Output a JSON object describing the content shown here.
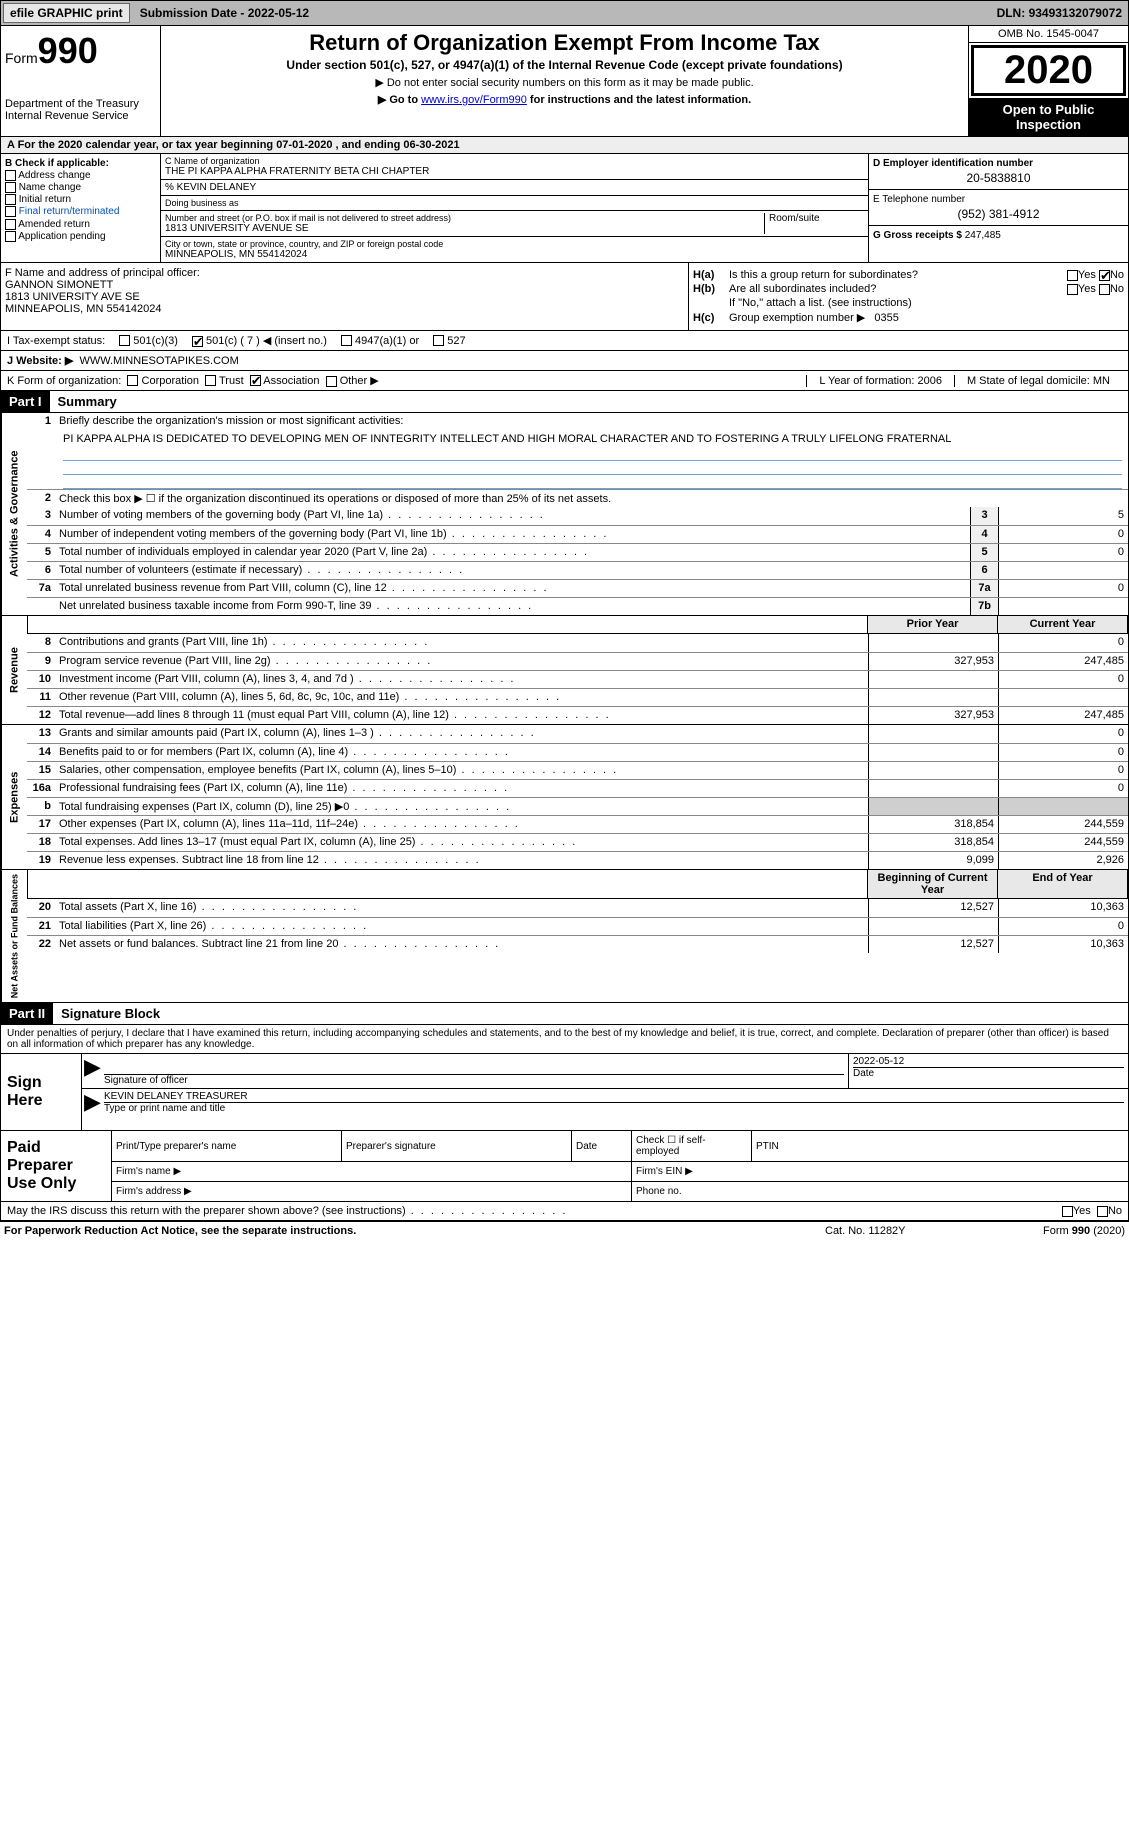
{
  "topbar": {
    "efile": "efile GRAPHIC print",
    "submission_label": "Submission Date - ",
    "submission_date": "2022-05-12",
    "dln_label": "DLN: ",
    "dln": "93493132079072"
  },
  "header": {
    "form_prefix": "Form",
    "form_number": "990",
    "dept": "Department of the Treasury\nInternal Revenue Service",
    "title": "Return of Organization Exempt From Income Tax",
    "subtitle": "Under section 501(c), 527, or 4947(a)(1) of the Internal Revenue Code (except private foundations)",
    "note1": "▶ Do not enter social security numbers on this form as it may be made public.",
    "note2_pre": "▶ Go to ",
    "note2_link": "www.irs.gov/Form990",
    "note2_post": " for instructions and the latest information.",
    "omb": "OMB No. 1545-0047",
    "year": "2020",
    "inspect": "Open to Public Inspection"
  },
  "periodline": "A For the 2020 calendar year, or tax year beginning 07-01-2020    , and ending 06-30-2021",
  "sectionB": {
    "title": "B Check if applicable:",
    "items": [
      "Address change",
      "Name change",
      "Initial return",
      "Final return/terminated",
      "Amended return",
      "Application pending"
    ]
  },
  "sectionC": {
    "label_name": "C Name of organization",
    "org_name": "THE PI KAPPA ALPHA FRATERNITY BETA CHI CHAPTER",
    "care_of": "% KEVIN DELANEY",
    "dba_label": "Doing business as",
    "street_label": "Number and street (or P.O. box if mail is not delivered to street address)",
    "room_label": "Room/suite",
    "street": "1813 UNIVERSITY AVENUE SE",
    "city_label": "City or town, state or province, country, and ZIP or foreign postal code",
    "city": "MINNEAPOLIS, MN  554142024"
  },
  "sectionD": {
    "label": "D Employer identification number",
    "value": "20-5838810"
  },
  "sectionE": {
    "label": "E Telephone number",
    "value": "(952) 381-4912"
  },
  "sectionG": {
    "label": "G Gross receipts $ ",
    "value": "247,485"
  },
  "sectionF": {
    "label": "F Name and address of principal officer:",
    "name": "GANNON SIMONETT",
    "addr1": "1813 UNIVERSITY AVE SE",
    "addr2": "MINNEAPOLIS, MN  554142024"
  },
  "sectionH": {
    "a": "Is this a group return for subordinates?",
    "a_yes": "Yes",
    "a_no": "No",
    "b": "Are all subordinates included?",
    "b_note": "If \"No,\" attach a list. (see instructions)",
    "c_label": "Group exemption number ▶",
    "c_value": "0355"
  },
  "rowI": {
    "label": "I    Tax-exempt status:",
    "opts": [
      "501(c)(3)",
      "501(c) ( 7 ) ◀ (insert no.)",
      "4947(a)(1) or",
      "527"
    ]
  },
  "rowJ": {
    "label": "J   Website: ▶",
    "value": "WWW.MINNESOTAPIKES.COM"
  },
  "rowK": {
    "label": "K Form of organization:",
    "opts": [
      "Corporation",
      "Trust",
      "Association",
      "Other ▶"
    ],
    "L": "L Year of formation: 2006",
    "M": "M State of legal domicile: MN"
  },
  "partI": {
    "num": "Part I",
    "title": "Summary"
  },
  "summary": {
    "side_gov": "Activities & Governance",
    "side_rev": "Revenue",
    "side_exp": "Expenses",
    "side_net": "Net Assets or Fund Balances",
    "l1_label": "Briefly describe the organization's mission or most significant activities:",
    "l1_text": "PI KAPPA ALPHA IS DEDICATED TO DEVELOPING MEN OF INNTEGRITY INTELLECT AND HIGH MORAL CHARACTER AND TO FOSTERING A TRULY LIFELONG FRATERNAL",
    "l2": "Check this box ▶ ☐  if the organization discontinued its operations or disposed of more than 25% of its net assets.",
    "lines_gov": [
      {
        "n": "3",
        "d": "Number of voting members of the governing body (Part VI, line 1a)",
        "box": "3",
        "v": "5"
      },
      {
        "n": "4",
        "d": "Number of independent voting members of the governing body (Part VI, line 1b)",
        "box": "4",
        "v": "0"
      },
      {
        "n": "5",
        "d": "Total number of individuals employed in calendar year 2020 (Part V, line 2a)",
        "box": "5",
        "v": "0"
      },
      {
        "n": "6",
        "d": "Total number of volunteers (estimate if necessary)",
        "box": "6",
        "v": ""
      },
      {
        "n": "7a",
        "d": "Total unrelated business revenue from Part VIII, column (C), line 12",
        "box": "7a",
        "v": "0"
      },
      {
        "n": "",
        "d": "Net unrelated business taxable income from Form 990-T, line 39",
        "box": "7b",
        "v": ""
      }
    ],
    "col_prior": "Prior Year",
    "col_current": "Current Year",
    "lines_rev": [
      {
        "n": "8",
        "d": "Contributions and grants (Part VIII, line 1h)",
        "p": "",
        "c": "0"
      },
      {
        "n": "9",
        "d": "Program service revenue (Part VIII, line 2g)",
        "p": "327,953",
        "c": "247,485"
      },
      {
        "n": "10",
        "d": "Investment income (Part VIII, column (A), lines 3, 4, and 7d )",
        "p": "",
        "c": "0"
      },
      {
        "n": "11",
        "d": "Other revenue (Part VIII, column (A), lines 5, 6d, 8c, 9c, 10c, and 11e)",
        "p": "",
        "c": ""
      },
      {
        "n": "12",
        "d": "Total revenue—add lines 8 through 11 (must equal Part VIII, column (A), line 12)",
        "p": "327,953",
        "c": "247,485"
      }
    ],
    "lines_exp": [
      {
        "n": "13",
        "d": "Grants and similar amounts paid (Part IX, column (A), lines 1–3 )",
        "p": "",
        "c": "0"
      },
      {
        "n": "14",
        "d": "Benefits paid to or for members (Part IX, column (A), line 4)",
        "p": "",
        "c": "0"
      },
      {
        "n": "15",
        "d": "Salaries, other compensation, employee benefits (Part IX, column (A), lines 5–10)",
        "p": "",
        "c": "0"
      },
      {
        "n": "16a",
        "d": "Professional fundraising fees (Part IX, column (A), line 11e)",
        "p": "",
        "c": "0"
      },
      {
        "n": "b",
        "d": "Total fundraising expenses (Part IX, column (D), line 25) ▶0",
        "p": "shade",
        "c": "shade"
      },
      {
        "n": "17",
        "d": "Other expenses (Part IX, column (A), lines 11a–11d, 11f–24e)",
        "p": "318,854",
        "c": "244,559"
      },
      {
        "n": "18",
        "d": "Total expenses. Add lines 13–17 (must equal Part IX, column (A), line 25)",
        "p": "318,854",
        "c": "244,559"
      },
      {
        "n": "19",
        "d": "Revenue less expenses. Subtract line 18 from line 12",
        "p": "9,099",
        "c": "2,926"
      }
    ],
    "col_boy": "Beginning of Current Year",
    "col_eoy": "End of Year",
    "lines_net": [
      {
        "n": "20",
        "d": "Total assets (Part X, line 16)",
        "p": "12,527",
        "c": "10,363"
      },
      {
        "n": "21",
        "d": "Total liabilities (Part X, line 26)",
        "p": "",
        "c": "0"
      },
      {
        "n": "22",
        "d": "Net assets or fund balances. Subtract line 21 from line 20",
        "p": "12,527",
        "c": "10,363"
      }
    ]
  },
  "partII": {
    "num": "Part II",
    "title": "Signature Block"
  },
  "sig": {
    "perjury": "Under penalties of perjury, I declare that I have examined this return, including accompanying schedules and statements, and to the best of my knowledge and belief, it is true, correct, and complete. Declaration of preparer (other than officer) is based on all information of which preparer has any knowledge.",
    "sign_here": "Sign Here",
    "sig_label": "Signature of officer",
    "date_label": "Date",
    "date_value": "2022-05-12",
    "name_line": "KEVIN DELANEY TREASURER",
    "name_label": "Type or print name and title"
  },
  "prep": {
    "label": "Paid Preparer Use Only",
    "h1": "Print/Type preparer's name",
    "h2": "Preparer's signature",
    "h3": "Date",
    "h4_a": "Check ☐ if self-employed",
    "h5": "PTIN",
    "firm_name": "Firm's name    ▶",
    "firm_ein": "Firm's EIN ▶",
    "firm_addr": "Firm's address ▶",
    "phone": "Phone no."
  },
  "discuss": {
    "q": "May the IRS discuss this return with the preparer shown above? (see instructions)",
    "yes": "Yes",
    "no": "No"
  },
  "footer": {
    "left": "For Paperwork Reduction Act Notice, see the separate instructions.",
    "mid": "Cat. No. 11282Y",
    "right_pre": "Form ",
    "right_b": "990",
    "right_post": " (2020)"
  }
}
